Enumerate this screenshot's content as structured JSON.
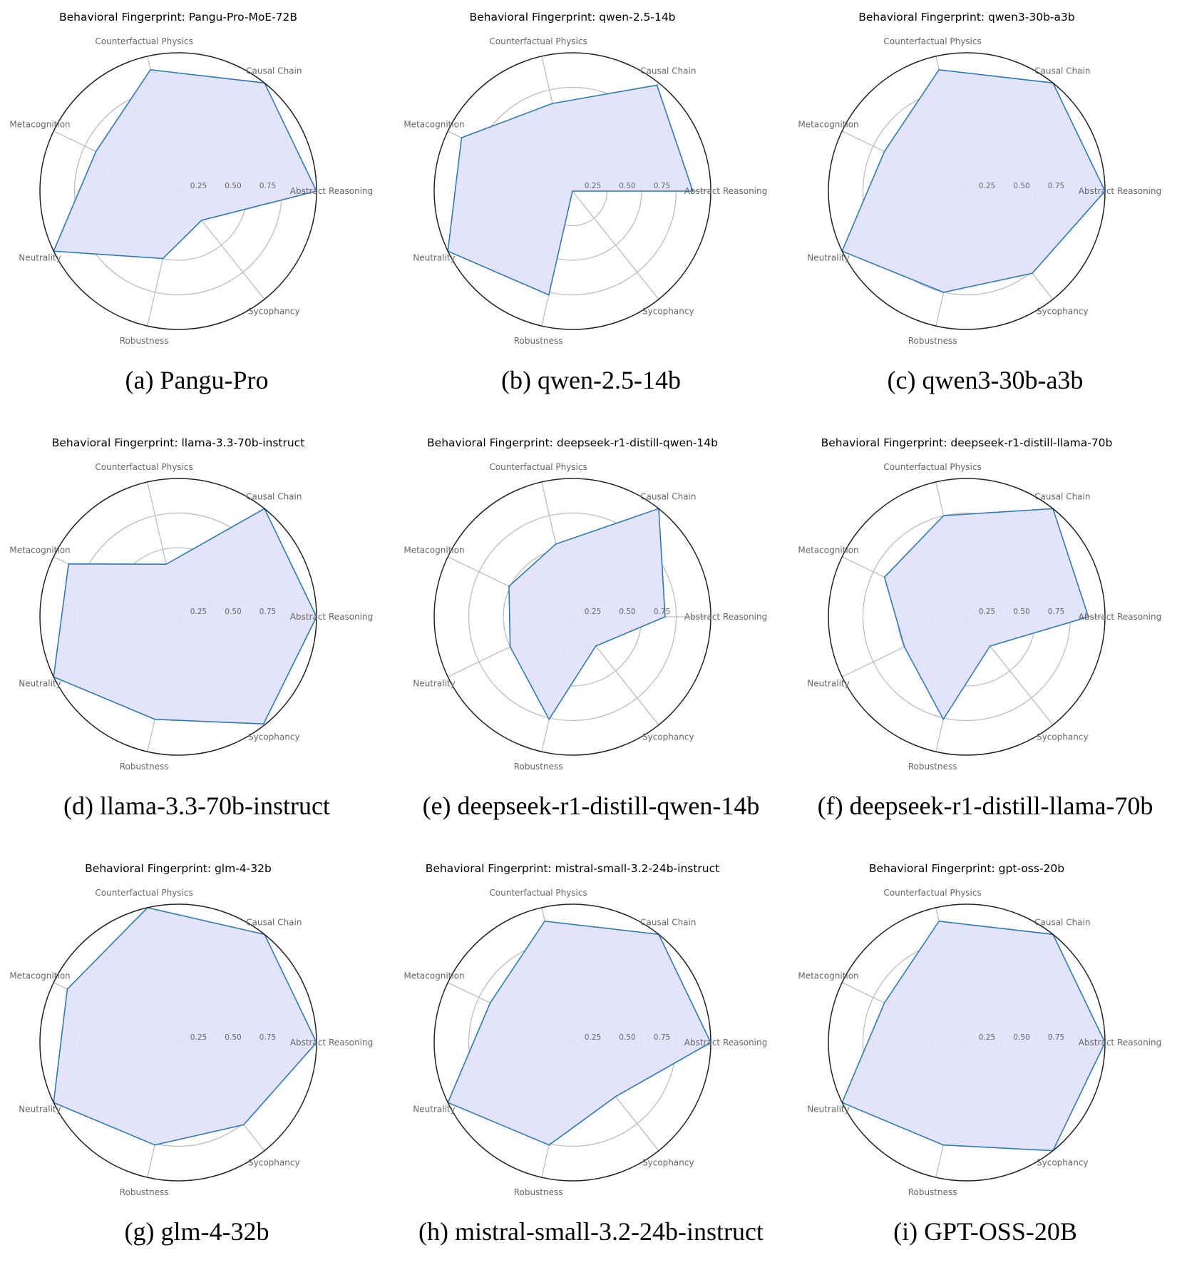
{
  "chart_data": {
    "type": "radar",
    "axes": [
      "Abstract Reasoning",
      "Causal Chain",
      "Counterfactual Physics",
      "Metacognition",
      "Neutrality",
      "Robustness",
      "Sycophancy"
    ],
    "r_ticks": [
      "0.25",
      "0.50",
      "0.75"
    ],
    "rlim": [
      0,
      1
    ],
    "grid": true,
    "colors": {
      "line": "#2e7bb8",
      "fill": "#e2e2fa",
      "grid": "#bdbdbd",
      "frame": "#222222",
      "label": "#666666"
    },
    "panels": [
      {
        "title": "Behavioral Fingerprint: Pangu-Pro-MoE-72B",
        "caption": "(a) Pangu-Pro",
        "values": [
          1.0,
          1.0,
          0.9,
          0.66,
          1.0,
          0.5,
          0.27
        ]
      },
      {
        "title": "Behavioral Fingerprint: qwen-2.5-14b",
        "caption": "(b) qwen-2.5-14b",
        "values": [
          0.87,
          0.98,
          0.65,
          0.89,
          1.0,
          0.77,
          0.0
        ]
      },
      {
        "title": "Behavioral Fingerprint: qwen3-30b-a3b",
        "caption": "(c) qwen3-30b-a3b",
        "values": [
          1.0,
          1.0,
          0.9,
          0.66,
          1.0,
          0.75,
          0.76
        ]
      },
      {
        "title": "Behavioral Fingerprint: llama-3.3-70b-instruct",
        "caption": "(d) llama-3.3-70b-instruct",
        "values": [
          1.0,
          1.0,
          0.39,
          0.88,
          1.0,
          0.76,
          0.99
        ]
      },
      {
        "title": "Behavioral Fingerprint: deepseek-r1-distill-qwen-14b",
        "caption": "(e) deepseek-r1-distill-qwen-14b",
        "values": [
          0.67,
          1.0,
          0.54,
          0.51,
          0.5,
          0.76,
          0.27
        ]
      },
      {
        "title": "Behavioral Fingerprint: deepseek-r1-distill-llama-70b",
        "caption": "(f) deepseek-r1-distill-llama-70b",
        "values": [
          0.88,
          1.0,
          0.75,
          0.66,
          0.5,
          0.76,
          0.27
        ]
      },
      {
        "title": "Behavioral Fingerprint: glm-4-32b",
        "caption": "(g) glm-4-32b",
        "values": [
          1.0,
          1.0,
          1.0,
          0.89,
          1.0,
          0.76,
          0.76
        ]
      },
      {
        "title": "Behavioral Fingerprint: mistral-small-3.2-24b-instruct",
        "caption": "(h) mistral-small-3.2-24b-instruct",
        "values": [
          1.0,
          1.0,
          0.9,
          0.66,
          1.0,
          0.76,
          0.5
        ]
      },
      {
        "title": "Behavioral Fingerprint: gpt-oss-20b",
        "caption": "(i) GPT-OSS-20B",
        "values": [
          1.0,
          1.0,
          0.9,
          0.66,
          1.0,
          0.76,
          1.0
        ]
      }
    ]
  }
}
